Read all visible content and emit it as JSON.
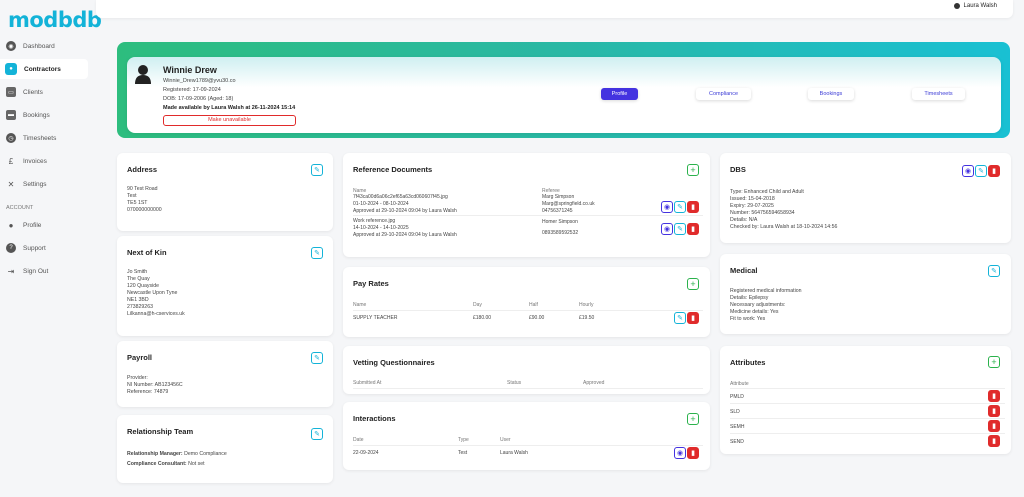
{
  "app": {
    "logo": "modbdb"
  },
  "sidebar": {
    "items": [
      {
        "label": "Dashboard"
      },
      {
        "label": "Contractors"
      },
      {
        "label": "Clients"
      },
      {
        "label": "Bookings"
      },
      {
        "label": "Timesheets"
      },
      {
        "label": "Invoices"
      },
      {
        "label": "Settings"
      }
    ],
    "section": "ACCOUNT",
    "account_items": [
      {
        "label": "Profile"
      },
      {
        "label": "Support"
      },
      {
        "label": "Sign Out"
      }
    ]
  },
  "topbar": {
    "user": "Laura Walsh"
  },
  "profile": {
    "name": "Winnie Drew",
    "email": "Winnie_Drew1789@yvu30.co",
    "registered": "Registered: 17-09-2024",
    "dob": "DOB: 17-09-2006 (Aged: 18)",
    "available": "Made available by Laura Walsh at 26-11-2024 15:14",
    "unavailable_label": "Make unavailable",
    "tabs": [
      {
        "label": "Profile"
      },
      {
        "label": "Compliance"
      },
      {
        "label": "Bookings"
      },
      {
        "label": "Timesheets"
      }
    ]
  },
  "address": {
    "title": "Address",
    "lines": [
      "90 Test Road",
      "Test",
      "TE5 1ST",
      "070000000000"
    ]
  },
  "kin": {
    "title": "Next of Kin",
    "lines": [
      "Jo Smith",
      "The Quay",
      "120 Quayside",
      "Newcastle Upon Tyne",
      "NE1 3BD",
      "273829263",
      "Lilkanna@h-cservices.uk"
    ]
  },
  "payroll": {
    "title": "Payroll",
    "lines": [
      "Provider:",
      "NI Number: AB123456C",
      "Reference: 74879"
    ]
  },
  "team": {
    "title": "Relationship Team",
    "manager_label": "Relationship Manager:",
    "manager": "Demo Compliance",
    "consultant_label": "Compliance Consultant:",
    "consultant": "Not set"
  },
  "refs": {
    "title": "Reference Documents",
    "col_name": "Name",
    "col_referee": "Referee",
    "rows": [
      {
        "name": "7f43ca00d6a06c2ef65a63cd060607f45.jpg",
        "dates": "01-10-2024 - 08-10-2024",
        "approved": "Approved at 29-10-2024 09:04 by Laura Walsh",
        "referee": "Marg Simpson",
        "email": "Marg@springfield.co.uk",
        "phone": "04756371245"
      },
      {
        "name": "Work reference.jpg",
        "dates": "14-10-2024 - 14-10-2025",
        "approved": "Approved at 29-10-2024 09:04 by Laura Walsh",
        "referee": "Homer Simpson",
        "email": "",
        "phone": "0893589592532"
      }
    ]
  },
  "pay": {
    "title": "Pay Rates",
    "cols": [
      "Name",
      "Day",
      "Half",
      "Hourly"
    ],
    "row": [
      "SUPPLY TEACHER",
      "£180.00",
      "£90.00",
      "£19.50"
    ]
  },
  "vetting": {
    "title": "Vetting Questionnaires",
    "cols": [
      "Submitted At",
      "Status",
      "Approved"
    ]
  },
  "interactions": {
    "title": "Interactions",
    "cols": [
      "Date",
      "Type",
      "User"
    ],
    "row": [
      "22-09-2024",
      "Test",
      "Laura Walsh"
    ]
  },
  "dbs": {
    "title": "DBS",
    "lines": [
      "Type: Enhanced Child and Adult",
      "Issued: 15-04-2018",
      "Expiry: 29-07-2025",
      "Number: 564756594658934",
      "Details: N/A",
      "Checked by: Laura Walsh at 18-10-2024 14:56"
    ]
  },
  "medical": {
    "title": "Medical",
    "lines": [
      "Registered medical information",
      "Details: Epilepsy",
      "Necessary adjustments:",
      "Medicine details: Yes",
      "Fit to work: Yes"
    ]
  },
  "attributes": {
    "title": "Attributes",
    "col": "Attribute",
    "items": [
      "PMLD",
      "SLD",
      "SEMH",
      "SEND"
    ]
  },
  "colors": {
    "accent": "#13b3d8",
    "primary": "#4433e0",
    "danger": "#e02b2b",
    "success": "#2bb24c"
  }
}
